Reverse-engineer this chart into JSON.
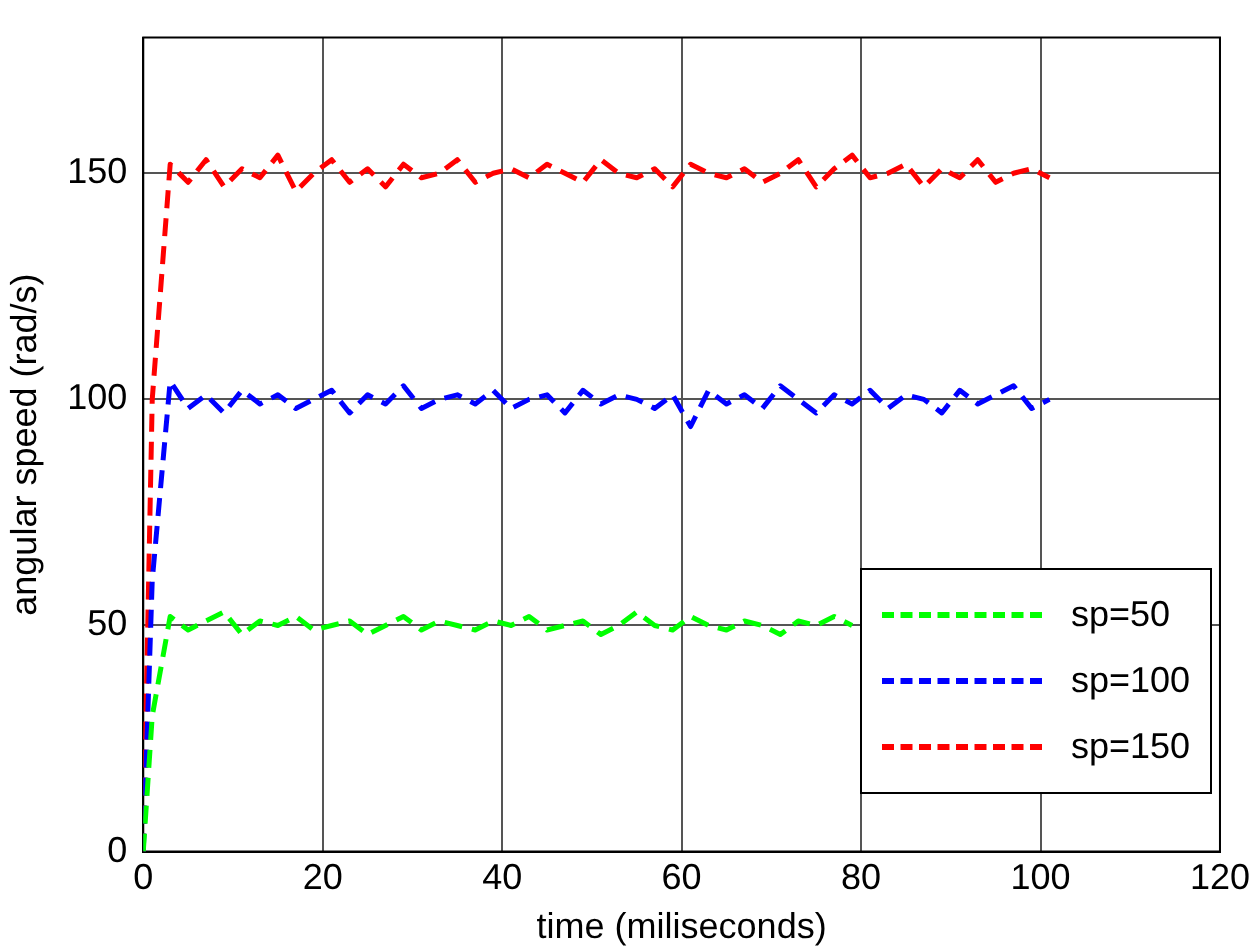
{
  "chart_data": {
    "type": "line",
    "xlabel": "time (miliseconds)",
    "ylabel": "angular speed (rad/s)",
    "xlim": [
      0,
      120
    ],
    "xticks": [
      0,
      20,
      40,
      60,
      80,
      100,
      120
    ],
    "ylim": [
      0,
      180
    ],
    "yticks": [
      0,
      50,
      100,
      150
    ],
    "grid": true,
    "legend": "bottom right",
    "line_style": "dashed",
    "marker": "none",
    "x": [
      0,
      1,
      3,
      5,
      7,
      9,
      11,
      13,
      15,
      17,
      19,
      21,
      23,
      25,
      27,
      29,
      31,
      33,
      35,
      37,
      39,
      41,
      43,
      45,
      47,
      49,
      51,
      53,
      55,
      57,
      59,
      61,
      63,
      65,
      67,
      69,
      71,
      73,
      75,
      77,
      79,
      81,
      83,
      85,
      87,
      89,
      91,
      93,
      95,
      97,
      99,
      101
    ],
    "series": [
      {
        "name": "sp=50",
        "color": "#00ff00",
        "values": [
          0,
          30,
          52,
          49,
          51,
          53,
          48,
          51,
          50,
          52,
          49,
          50,
          51,
          48,
          50,
          52,
          49,
          51,
          50,
          49,
          51,
          50,
          52,
          49,
          50,
          51,
          48,
          50,
          53,
          50,
          49,
          52,
          50,
          49,
          51,
          50,
          48,
          51,
          50,
          52,
          50,
          null,
          null,
          null,
          null,
          null,
          null,
          null,
          null,
          null,
          null,
          null
        ]
      },
      {
        "name": "sp=100",
        "color": "#0000ff",
        "values": [
          0,
          60,
          104,
          98,
          101,
          97,
          102,
          99,
          101,
          98,
          100,
          102,
          97,
          101,
          99,
          103,
          98,
          100,
          101,
          99,
          102,
          98,
          100,
          101,
          97,
          102,
          99,
          101,
          100,
          98,
          101,
          94,
          102,
          99,
          101,
          98,
          103,
          100,
          97,
          101,
          99,
          102,
          98,
          101,
          100,
          97,
          102,
          99,
          101,
          103,
          98,
          100
        ]
      },
      {
        "name": "sp=150",
        "color": "#ff0000",
        "values": [
          0,
          100,
          152,
          148,
          153,
          147,
          151,
          149,
          154,
          146,
          150,
          153,
          148,
          151,
          147,
          152,
          149,
          150,
          153,
          148,
          150,
          151,
          149,
          152,
          150,
          148,
          153,
          150,
          149,
          151,
          147,
          152,
          150,
          149,
          151,
          148,
          150,
          153,
          147,
          151,
          154,
          149,
          150,
          152,
          147,
          151,
          149,
          153,
          148,
          150,
          151,
          149
        ]
      }
    ]
  }
}
